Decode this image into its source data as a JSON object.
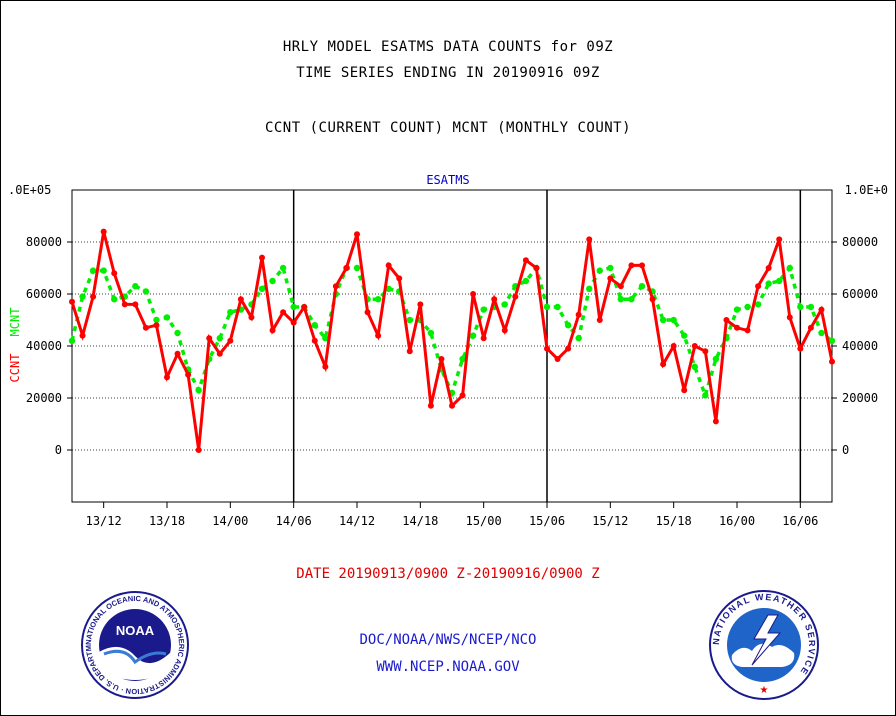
{
  "header": {
    "line1": "HRLY MODEL ESATMS DATA COUNTS for 09Z",
    "line2": "TIME SERIES ENDING IN 20190916 09Z",
    "line3": "CCNT (CURRENT COUNT) MCNT (MONTHLY COUNT)"
  },
  "chart_data": {
    "type": "line",
    "title": "ESATMS",
    "ylabel_left": "CCNT",
    "ylabel_mcnt": "MCNT",
    "ylim": [
      -20000,
      100000
    ],
    "y_ticks": [
      0,
      20000,
      40000,
      60000,
      80000
    ],
    "y_tick_labels": [
      "0",
      "20000",
      "40000",
      "60000",
      "80000"
    ],
    "y_top_label_left": ".0E+05",
    "y_top_label_right": "1.0E+0",
    "x_tick_labels": [
      "13/12",
      "13/18",
      "14/00",
      "14/06",
      "14/12",
      "14/18",
      "15/00",
      "15/06",
      "15/12",
      "15/18",
      "16/00",
      "16/06"
    ],
    "grid": true,
    "colors": {
      "ccnt": "#ff0000",
      "mcnt": "#00ee00",
      "title": "#0000cc"
    },
    "series": [
      {
        "name": "CCNT",
        "values": [
          57000,
          44000,
          59000,
          84000,
          68000,
          56000,
          56000,
          47000,
          48000,
          28000,
          37000,
          29000,
          0,
          43000,
          37000,
          42000,
          58000,
          51000,
          74000,
          46000,
          53000,
          49000,
          55000,
          42000,
          32000,
          63000,
          70000,
          83000,
          53000,
          44000,
          71000,
          66000,
          38000,
          56000,
          17000,
          35000,
          17000,
          21000,
          60000,
          43000,
          58000,
          46000,
          59000,
          73000,
          70000,
          39000,
          35000,
          39000,
          52000,
          81000,
          50000,
          66000,
          63000,
          71000,
          71000,
          58000,
          33000,
          40000,
          23000,
          40000,
          38000,
          11000,
          50000,
          47000,
          46000,
          63000,
          70000,
          81000,
          51000,
          39000,
          47000,
          54000,
          34000
        ]
      },
      {
        "name": "MCNT",
        "values": [
          42000,
          59000,
          69000,
          69000,
          58000,
          59000,
          63000,
          61000,
          50000,
          51000,
          45000,
          31000,
          23000,
          35000,
          43000,
          53000,
          54000,
          56000,
          62000,
          65000,
          70000,
          55000,
          55000,
          48000,
          43000,
          60000,
          70000,
          70000,
          58000,
          58000,
          62000,
          61000,
          50000,
          50000,
          45000,
          31000,
          22000,
          35000,
          44000,
          54000,
          55000,
          56000,
          63000,
          65000,
          70000,
          55000,
          55000,
          48000,
          43000,
          62000,
          69000,
          70000,
          58000,
          58000,
          63000,
          61000,
          50000,
          50000,
          44000,
          32000,
          21000,
          35000,
          43000,
          54000,
          55000,
          56000,
          64000,
          65000,
          70000,
          55000,
          55000,
          45000,
          42000
        ]
      }
    ]
  },
  "footer": {
    "date_range": "DATE 20190913/0900 Z-20190916/0900 Z",
    "org": "DOC/NOAA/NWS/NCEP/NCO",
    "url": "WWW.NCEP.NOAA.GOV"
  },
  "logos": {
    "noaa_text": "NOAA",
    "noaa_ring": "NATIONAL OCEANIC AND ATMOSPHERIC ADMINISTRATION · U.S. DEPARTMENT OF COMMERCE ·",
    "nws_ring": "NATIONAL WEATHER SERVICE"
  }
}
